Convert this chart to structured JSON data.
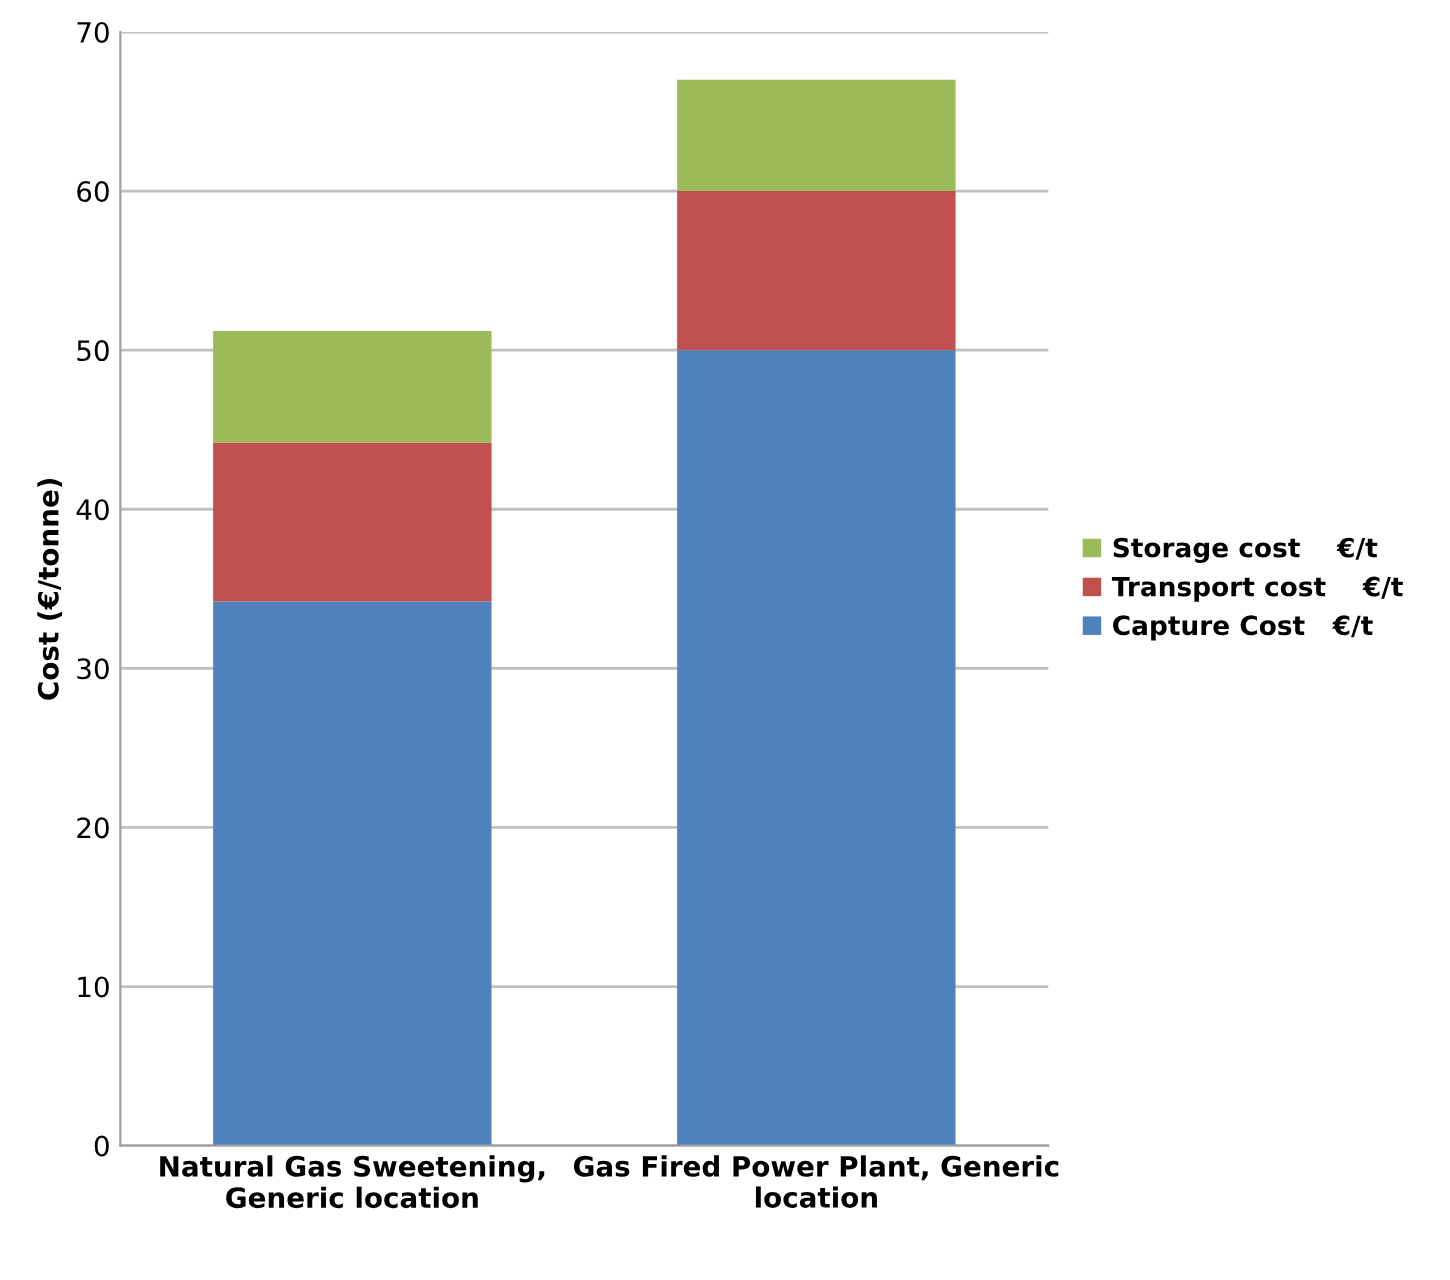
{
  "chart_data": {
    "type": "bar",
    "stacked": true,
    "ylabel": "Cost (€/tonne)",
    "categories": [
      "Natural Gas Sweetening,\nGeneric location",
      "Gas Fired Power Plant, Generic\nlocation"
    ],
    "series": [
      {
        "name": "Capture Cost   €/t",
        "color": "#4f81bd",
        "values": [
          34.2,
          50
        ]
      },
      {
        "name": "Transport cost    €/t",
        "color": "#c0504d",
        "values": [
          10,
          10
        ]
      },
      {
        "name": "Storage cost    €/t",
        "color": "#9bbb59",
        "values": [
          7,
          7
        ]
      }
    ],
    "ylim": [
      0,
      70
    ],
    "yticks": [
      0,
      10,
      20,
      30,
      40,
      50,
      60,
      70
    ],
    "grid": "y",
    "legend": "right"
  }
}
